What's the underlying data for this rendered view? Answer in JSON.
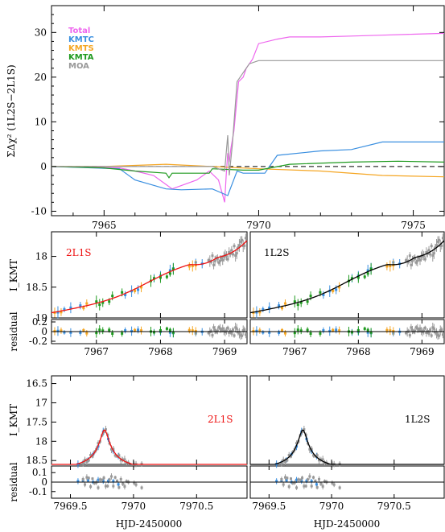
{
  "colors": {
    "total": "#ee66ee",
    "kmtc": "#3a8fe0",
    "kmts": "#f5a623",
    "kmta": "#1f9a1f",
    "moa": "#999999",
    "model_2l1s": "#ee1111",
    "model_1l2s": "#000000"
  },
  "legend": [
    "Total",
    "KMTC",
    "KMTS",
    "KMTA",
    "MOA"
  ],
  "xlabel": "HJD-2450000",
  "chart_data": [
    {
      "type": "line",
      "ylabel": "ΣΔχ² (1L2S−2L1S)",
      "xlim": [
        7963.3,
        7976.0
      ],
      "ylim": [
        -11,
        36
      ],
      "xticks": [
        7965,
        7970,
        7975
      ],
      "yticks": [
        -10,
        0,
        10,
        20,
        30
      ],
      "grid": false,
      "legend_position": "top-left",
      "series": [
        {
          "name": "Total",
          "color_key": "total",
          "x": [
            7963.3,
            7965.5,
            7966.0,
            7966.6,
            7967.0,
            7967.2,
            7967.4,
            7968.0,
            7968.4,
            7968.7,
            7968.9,
            7968.95,
            7969.0,
            7969.05,
            7969.1,
            7969.2,
            7969.35,
            7969.5,
            7969.6,
            7969.8,
            7970.0,
            7970.6,
            7971.0,
            7972.0,
            7973.0,
            7974.0,
            7975.0,
            7976.0
          ],
          "y": [
            0,
            -0.3,
            -1,
            -2,
            -4,
            -5,
            -4.5,
            -3,
            -1,
            -3,
            -8,
            -2,
            3,
            1,
            4,
            8,
            19,
            20,
            22,
            24,
            27.5,
            28.5,
            29,
            29,
            29.2,
            29.4,
            29.6,
            29.8
          ]
        },
        {
          "name": "KMTC",
          "color_key": "kmtc",
          "x": [
            7963.3,
            7965.5,
            7966.0,
            7967.0,
            7967.5,
            7968.5,
            7969.0,
            7969.3,
            7969.5,
            7970.2,
            7970.6,
            7972.0,
            7973.0,
            7974.0,
            7976.0
          ],
          "y": [
            0,
            -0.5,
            -3,
            -5,
            -5.2,
            -5,
            -6.5,
            -1,
            -1.5,
            -1.5,
            2.5,
            3.5,
            3.8,
            5.5,
            5.5
          ]
        },
        {
          "name": "KMTS",
          "color_key": "kmts",
          "x": [
            7963.3,
            7965.0,
            7967.0,
            7968.5,
            7970.0,
            7972.0,
            7974.0,
            7976.0
          ],
          "y": [
            0,
            0,
            0.5,
            0,
            -0.5,
            -1,
            -2,
            -2.3
          ]
        },
        {
          "name": "KMTA",
          "color_key": "kmta",
          "x": [
            7963.3,
            7965.0,
            7966.0,
            7967.0,
            7967.1,
            7967.2,
            7967.5,
            7968.4,
            7968.5,
            7969.5,
            7970.0,
            7971.0,
            7973.0,
            7974.5,
            7976.0
          ],
          "y": [
            0,
            -0.3,
            -1,
            -1.5,
            -2.5,
            -1.5,
            -1.5,
            -1.5,
            -0.5,
            -0.8,
            -0.8,
            0.5,
            1,
            1.2,
            1
          ]
        },
        {
          "name": "MOA",
          "color_key": "moa",
          "x": [
            7963.3,
            7966.0,
            7968.5,
            7968.9,
            7969.0,
            7969.05,
            7969.15,
            7969.3,
            7969.5,
            7969.7,
            7970.0,
            7970.6,
            7972.0,
            7974.0,
            7976.0
          ],
          "y": [
            0,
            0,
            0,
            -1,
            7,
            -2,
            5,
            19,
            21,
            23,
            23.7,
            23.7,
            23.7,
            23.7,
            23.7
          ]
        }
      ]
    },
    {
      "type": "scatter",
      "panel": "2L1S",
      "ylabel": "I_KMT",
      "ylim": [
        19.0,
        17.6
      ],
      "xlim": [
        7966.3,
        7969.35
      ],
      "xticks": [
        7967,
        7968,
        7969
      ],
      "yticks": [
        18,
        18.5,
        19
      ],
      "residual_ylim": [
        -0.25,
        0.25
      ],
      "residual_yticks": [
        0.2,
        0,
        -0.2
      ],
      "residual_ylabel": "residual"
    },
    {
      "type": "scatter",
      "panel": "1L2S",
      "ylim": [
        19.0,
        17.6
      ],
      "xlim": [
        7966.3,
        7969.35
      ],
      "xticks": [
        7967,
        7968,
        7969
      ],
      "residual_ylim": [
        -0.25,
        0.25
      ]
    },
    {
      "type": "scatter",
      "panel": "2L1S",
      "ylabel": "I_KMT",
      "ylim": [
        18.6,
        16.3
      ],
      "xlim": [
        7969.35,
        7970.9
      ],
      "xticks": [
        7969.5,
        7970,
        7970.5
      ],
      "yticks": [
        16.5,
        17,
        17.5,
        18,
        18.5
      ],
      "residual_ylim": [
        -0.17,
        0.17
      ],
      "residual_yticks": [
        0.1,
        0,
        -0.1
      ],
      "residual_ylabel": "residual"
    },
    {
      "type": "scatter",
      "panel": "1L2S",
      "ylim": [
        18.6,
        16.3
      ],
      "xlim": [
        7969.35,
        7970.9
      ],
      "xticks": [
        7969.5,
        7970,
        7970.5
      ],
      "residual_ylim": [
        -0.17,
        0.17
      ]
    }
  ]
}
